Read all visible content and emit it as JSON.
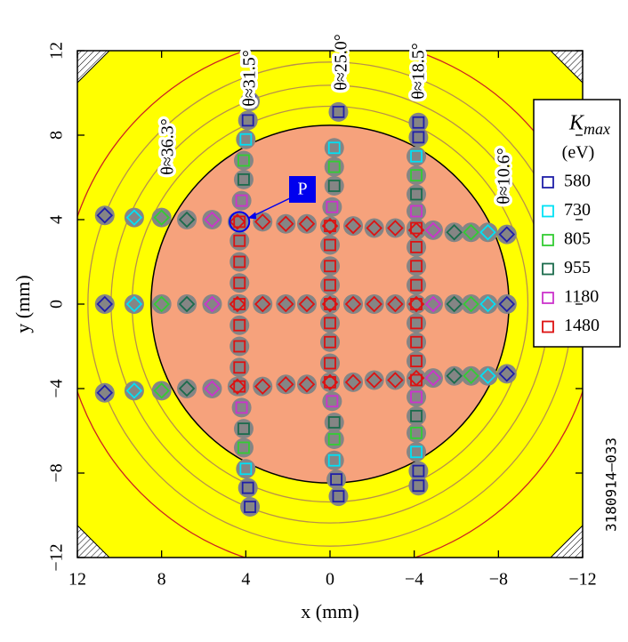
{
  "chart_data": {
    "type": "scatter",
    "xlabel": "x (mm)",
    "ylabel": "y (mm)",
    "xlim": [
      12,
      -12
    ],
    "ylim": [
      -12,
      12
    ],
    "xticks": [
      12,
      8,
      4,
      0,
      {
        "value": -4,
        "label": "−4"
      },
      {
        "value": -8,
        "label": "−8"
      },
      {
        "value": -12,
        "label": "−12"
      }
    ],
    "yticks": [
      {
        "value": -12,
        "label": "−12"
      },
      {
        "value": -8,
        "label": "−8"
      },
      {
        "value": -4,
        "label": "−4"
      },
      0,
      4,
      8,
      12
    ],
    "legend_title": {
      "main": "K",
      "sub": "max",
      "unit": "(eV)"
    },
    "legend_position": "right",
    "annotations": [
      "θ≈36.3°",
      "θ≈31.5°",
      "θ≈25.0°",
      "θ≈18.5°",
      "θ≈10.6°"
    ],
    "point_label": "P",
    "side_note": "3180914–033",
    "series": [
      {
        "name": "580",
        "color": "#1f1fa8",
        "x": [
          3.8,
          3.9,
          3.9,
          3.8,
          -0.4,
          -0.3,
          -0.4,
          -4.2,
          -4.2,
          -4.2,
          -4.2,
          10.7,
          -8.4,
          10.7,
          -8.4,
          10.7,
          -8.4
        ],
        "y": [
          9.6,
          8.7,
          -8.7,
          -9.6,
          9.1,
          -8.3,
          -9.1,
          8.6,
          7.9,
          -7.9,
          -8.6,
          4.2,
          3.3,
          0,
          0,
          -4.2,
          -3.3
        ],
        "markers": [
          "square",
          "square",
          "square",
          "square",
          "square",
          "square",
          "square",
          "square",
          "square",
          "square",
          "square",
          "diamond",
          "diamond",
          "diamond",
          "diamond",
          "diamond",
          "diamond"
        ]
      },
      {
        "name": "730",
        "color": "#00e1f5",
        "x": [
          4.0,
          4.0,
          -0.2,
          -0.2,
          -4.1,
          -4.1,
          9.3,
          -7.5,
          9.3,
          -7.5,
          9.3,
          -7.5
        ],
        "y": [
          7.8,
          -7.8,
          7.4,
          -7.4,
          7.0,
          -7.0,
          4.1,
          3.4,
          0,
          0,
          -4.1,
          -3.4
        ],
        "markers": [
          "square",
          "square",
          "square",
          "square",
          "square",
          "square",
          "diamond",
          "diamond",
          "diamond",
          "diamond",
          "diamond",
          "diamond"
        ]
      },
      {
        "name": "805",
        "color": "#33cc33",
        "x": [
          4.1,
          4.1,
          -0.2,
          -0.2,
          -4.1,
          -4.1,
          8.0,
          -6.7,
          8.0,
          -6.7,
          8.0,
          -6.7
        ],
        "y": [
          6.8,
          -6.8,
          6.5,
          -6.4,
          6.1,
          -6.1,
          4.1,
          3.4,
          0,
          0,
          -4.1,
          -3.4
        ],
        "markers": [
          "square",
          "square",
          "square",
          "square",
          "square",
          "square",
          "diamond",
          "diamond",
          "diamond",
          "diamond",
          "diamond",
          "diamond"
        ]
      },
      {
        "name": "955",
        "color": "#1b6b4c",
        "x": [
          4.1,
          4.1,
          -0.2,
          -0.2,
          -4.1,
          -4.1,
          6.8,
          -5.9,
          6.8,
          -5.9,
          6.8,
          -5.9
        ],
        "y": [
          5.9,
          -5.9,
          5.6,
          -5.6,
          5.2,
          -5.3,
          4.0,
          3.4,
          0,
          0,
          -4.0,
          -3.4
        ],
        "markers": [
          "square",
          "square",
          "square",
          "square",
          "square",
          "square",
          "diamond",
          "diamond",
          "diamond",
          "diamond",
          "diamond",
          "diamond"
        ]
      },
      {
        "name": "1180",
        "color": "#cc33cc",
        "x": [
          4.2,
          4.2,
          -0.1,
          -0.1,
          -4.1,
          -4.1,
          5.6,
          -4.9,
          5.6,
          -4.9,
          5.6,
          -4.9
        ],
        "y": [
          4.9,
          -4.9,
          4.6,
          -4.6,
          4.4,
          -4.4,
          4.0,
          3.5,
          0,
          0,
          -4.0,
          -3.5
        ],
        "markers": [
          "square",
          "square",
          "square",
          "square",
          "square",
          "square",
          "diamond",
          "diamond",
          "diamond",
          "diamond",
          "diamond",
          "diamond"
        ]
      },
      {
        "name": "1480",
        "color": "#dd1111",
        "x": [
          4.3,
          4.3,
          4.3,
          4.3,
          4.3,
          4.3,
          4.3,
          4.3,
          4.3,
          0,
          0,
          0,
          0,
          0,
          0,
          0,
          0,
          0,
          -4.1,
          -4.1,
          -4.1,
          -4.1,
          -4.1,
          -4.1,
          -4.1,
          -4.1,
          -4.1,
          4.4,
          3.2,
          2.1,
          1.1,
          0.0,
          -1.1,
          -2.1,
          -3.1,
          -4.1,
          4.4,
          3.2,
          2.1,
          1.1,
          0.0,
          -1.1,
          -2.1,
          -3.1,
          -4.1,
          4.4,
          3.2,
          2.1,
          1.1,
          0.0,
          -1.1,
          -2.1,
          -3.1,
          -4.1
        ],
        "y": [
          3.9,
          3.0,
          2.0,
          1.0,
          0,
          -1.0,
          -2.0,
          -3.0,
          -3.9,
          3.7,
          2.8,
          1.8,
          0.9,
          0,
          -0.9,
          -1.8,
          -2.8,
          -3.7,
          3.6,
          2.7,
          1.8,
          0.9,
          0,
          -0.9,
          -1.8,
          -2.7,
          -3.6,
          3.9,
          3.9,
          3.8,
          3.8,
          3.7,
          3.7,
          3.6,
          3.6,
          3.5,
          0,
          0,
          0,
          0,
          0,
          0,
          0,
          0,
          0,
          -3.9,
          -3.9,
          -3.8,
          -3.8,
          -3.7,
          -3.7,
          -3.6,
          -3.6,
          -3.5
        ],
        "markers": [
          "square",
          "square",
          "square",
          "square",
          "square",
          "square",
          "square",
          "square",
          "square",
          "square",
          "square",
          "square",
          "square",
          "square",
          "square",
          "square",
          "square",
          "square",
          "square",
          "square",
          "square",
          "square",
          "square",
          "square",
          "square",
          "square",
          "square",
          "diamond",
          "diamond",
          "diamond",
          "diamond",
          "diamond",
          "diamond",
          "diamond",
          "diamond",
          "diamond",
          "diamond",
          "diamond",
          "diamond",
          "diamond",
          "diamond",
          "diamond",
          "diamond",
          "diamond",
          "diamond",
          "diamond",
          "diamond",
          "diamond",
          "diamond",
          "diamond",
          "diamond",
          "diamond",
          "diamond",
          "diamond"
        ]
      }
    ]
  }
}
